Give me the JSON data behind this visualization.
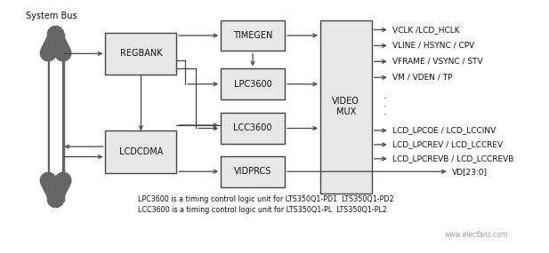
{
  "background_color": "#ffffff",
  "system_bus_label": "System Bus",
  "output_labels_top": [
    "VCLK /LCD_HCLK",
    "VLINE / HSYNC / CPV",
    "VFRAME / VSYNC / STV",
    "VM / VDEN / TP"
  ],
  "output_labels_bottom": [
    "LCD_LPCOE / LCD_LCCINV",
    "LCD_LPCREV / LCD_LCCREV",
    "LCD_LPCREVB / LCD_LCCREVB"
  ],
  "vd_label": "VD[23:0]",
  "footnote1": "LPC3600 is a timing control logic unit for LTS350Q1-PD1  LTS350Q1-PD2",
  "footnote2": "LCC3600 is a timing control logic unit for LTS350Q1-PL  LTS350Q1-PL2",
  "watermark": "www.elecfans.com",
  "box_fill": "#e8e8e8",
  "box_edge": "#444444",
  "arrow_color": "#444444",
  "bus_color": "#666666",
  "text_color": "#111111",
  "font_size_block": 7,
  "font_size_output": 6.5,
  "font_size_footnote": 5.8,
  "font_size_bus": 7
}
